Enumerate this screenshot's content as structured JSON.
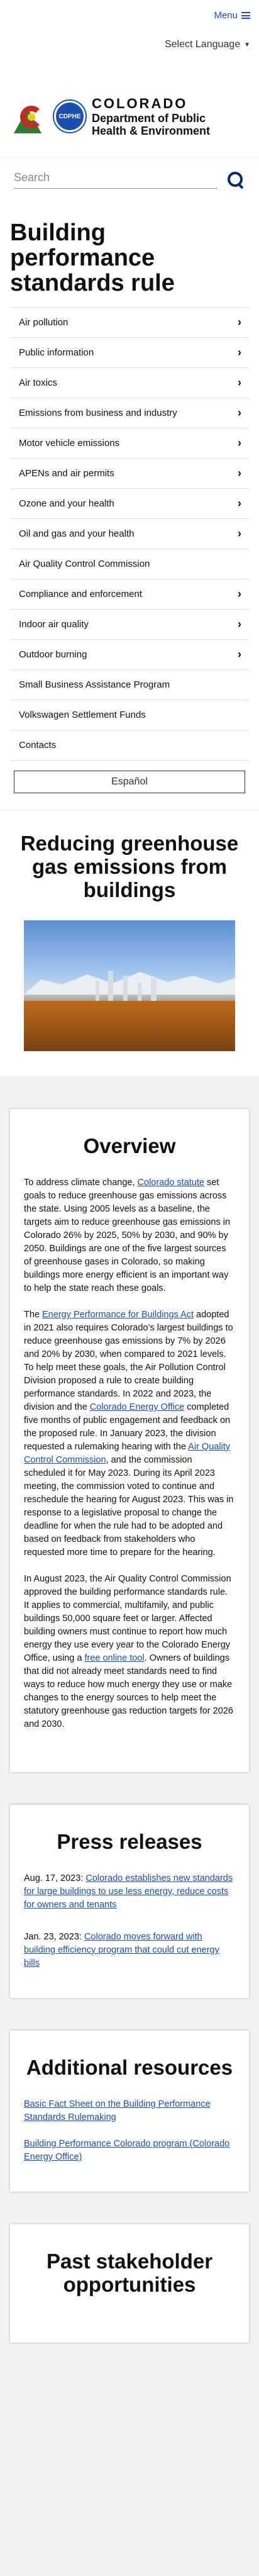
{
  "header": {
    "menu_label": "Menu",
    "language_label": "Select Language",
    "state_name": "COLORADO",
    "department_line1": "Department of Public",
    "department_line2": "Health & Environment",
    "seal_text": "CDPHE",
    "search_placeholder": "Search"
  },
  "page_title": "Building performance standards rule",
  "nav_items": [
    {
      "label": "Air pollution",
      "chevron": true
    },
    {
      "label": "Public information",
      "chevron": true
    },
    {
      "label": "Air toxics",
      "chevron": true
    },
    {
      "label": "Emissions from business and industry",
      "chevron": true
    },
    {
      "label": "Motor vehicle emissions",
      "chevron": true
    },
    {
      "label": "APENs and air permits",
      "chevron": true
    },
    {
      "label": "Ozone and your health",
      "chevron": true
    },
    {
      "label": "Oil and gas and your health",
      "chevron": true
    },
    {
      "label": "Air Quality Control Commission",
      "chevron": false
    },
    {
      "label": "Compliance and enforcement",
      "chevron": true
    },
    {
      "label": "Indoor air quality",
      "chevron": true
    },
    {
      "label": "Outdoor burning",
      "chevron": true
    },
    {
      "label": "Small Business Assistance Program",
      "chevron": false
    },
    {
      "label": "Volkswagen Settlement Funds",
      "chevron": false
    },
    {
      "label": "Contacts",
      "chevron": false
    }
  ],
  "espanol_label": "Español",
  "hero": {
    "heading": "Reducing greenhouse gas emissions from buildings"
  },
  "overview": {
    "heading": "Overview",
    "p1_pre": "To address climate change, ",
    "p1_link": "Colorado statute",
    "p1_post": " set goals to reduce greenhouse gas emissions across the state. Using 2005 levels as a baseline, the targets aim to reduce greenhouse gas emissions in Colorado 26% by 2025, 50% by 2030, and 90% by 2050. Buildings are one of the five largest sources of greenhouse gases in Colorado, so making buildings more energy efficient is an important way to help the state reach these goals.",
    "p2_pre": "The ",
    "p2_link1": "Energy Performance for Buildings Act",
    "p2_mid1": " adopted in 2021 also requires Colorado’s largest buildings to reduce greenhouse gas emissions by 7% by 2026 and 20% by 2030, when compared to 2021 levels. To help meet these goals, the Air Pollution Control Division proposed a rule to create building performance standards. In 2022 and 2023, the division and the ",
    "p2_link2": "Colorado Energy Office",
    "p2_mid2": " completed five months of public engagement and feedback on the proposed rule. In January 2023, the division requested a rulemaking hearing with the ",
    "p2_link3": "Air Quality Control Commission",
    "p2_post": ", and the commission scheduled it for May 2023. During its April 2023 meeting, the commission voted to continue and reschedule the hearing for August 2023. This was in response to a legislative proposal to change the deadline for when the rule had to be adopted and based on feedback from stakeholders who requested more time to prepare for the hearing.",
    "p3_pre": "In August 2023, the Air Quality Control Commission approved the building performance standards rule. It applies to commercial, multifamily, and public buildings 50,000 square feet or larger. Affected building owners must continue to report how much energy they use every year to the Colorado Energy Office, using a ",
    "p3_link": "free online tool",
    "p3_post": ". Owners of buildings that did not already meet standards need to find ways to reduce how much energy they use or make changes to the energy sources to help meet the statutory greenhouse gas reduction targets for 2026 and 2030."
  },
  "press": {
    "heading": "Press releases",
    "items": [
      {
        "date": "Aug. 17, 2023: ",
        "link": "Colorado establishes new standards for large buildings to use less energy, reduce costs for owners and tenants"
      },
      {
        "date": "Jan. 23, 2023: ",
        "link": "Colorado moves forward with building efficiency program that could cut energy bills"
      }
    ]
  },
  "resources": {
    "heading": "Additional resources",
    "items": [
      {
        "link": "Basic Fact Sheet on the Building Performance Standards Rulemaking"
      },
      {
        "link": "Building Performance Colorado program (Colorado Energy Office)"
      }
    ]
  },
  "stakeholder": {
    "heading": "Past stakeholder opportunities"
  }
}
